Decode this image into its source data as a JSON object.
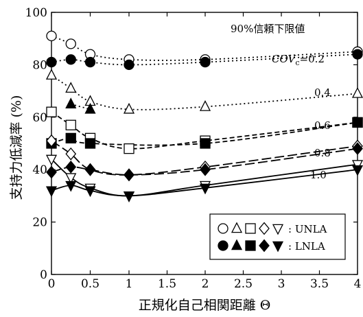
{
  "chart_data": {
    "type": "line",
    "title": "90%信頼下限値",
    "xlabel": "正規化自己相関距離 Θ",
    "ylabel": "支持力低減率 (%)",
    "xlim": [
      0,
      4
    ],
    "ylim": [
      0,
      100
    ],
    "x_axis_note": "nonlinear axis: 0–1 stretched, 1–4 compressed",
    "xticks": [
      "0",
      "0.5",
      "1",
      "1.5",
      "2",
      "2.5",
      "3",
      "3.5",
      "4"
    ],
    "yticks": [
      "0",
      "20",
      "40",
      "60",
      "80",
      "100"
    ],
    "x": [
      0,
      0.25,
      0.5,
      1,
      2,
      4
    ],
    "cov_label_prefix": "COV",
    "cov_label_sub": "c",
    "legend": {
      "placement": "bottom-right",
      "entries": [
        {
          "label": ": UNLA",
          "markers": [
            "circle-open",
            "triangle-up-open",
            "square-open",
            "diamond-open",
            "triangle-down-open"
          ]
        },
        {
          "label": ": LNLA",
          "markers": [
            "circle-filled",
            "triangle-up-filled",
            "square-filled",
            "diamond-filled",
            "triangle-down-filled"
          ]
        }
      ]
    },
    "series": [
      {
        "cov": "=0.2",
        "marker": "circle",
        "unla": [
          91,
          88,
          84,
          82,
          82,
          85
        ],
        "lnla": [
          81,
          82,
          81,
          80,
          81,
          84
        ],
        "line": "dotted"
      },
      {
        "cov": "0.4",
        "marker": "triangle-up",
        "unla": [
          76,
          71,
          66,
          63,
          64,
          69
        ],
        "lnla": [
          null,
          65,
          63,
          null,
          null,
          null
        ],
        "line": "dotted"
      },
      {
        "cov": "0.6",
        "marker": "square",
        "unla": [
          62,
          57,
          52,
          48,
          51,
          58
        ],
        "lnla": [
          50,
          52,
          50,
          null,
          50,
          58
        ],
        "line": "short-dash"
      },
      {
        "cov": "0.8",
        "marker": "diamond",
        "unla": [
          51,
          46,
          40,
          38,
          41,
          49
        ],
        "lnla": [
          39,
          41,
          40,
          38,
          40,
          48
        ],
        "line": "long-dash"
      },
      {
        "cov": "1.0",
        "marker": "triangle-down",
        "unla": [
          44,
          37,
          33,
          30,
          34,
          42
        ],
        "lnla": [
          32,
          34,
          32,
          30,
          33,
          40
        ],
        "line": "solid"
      }
    ]
  }
}
